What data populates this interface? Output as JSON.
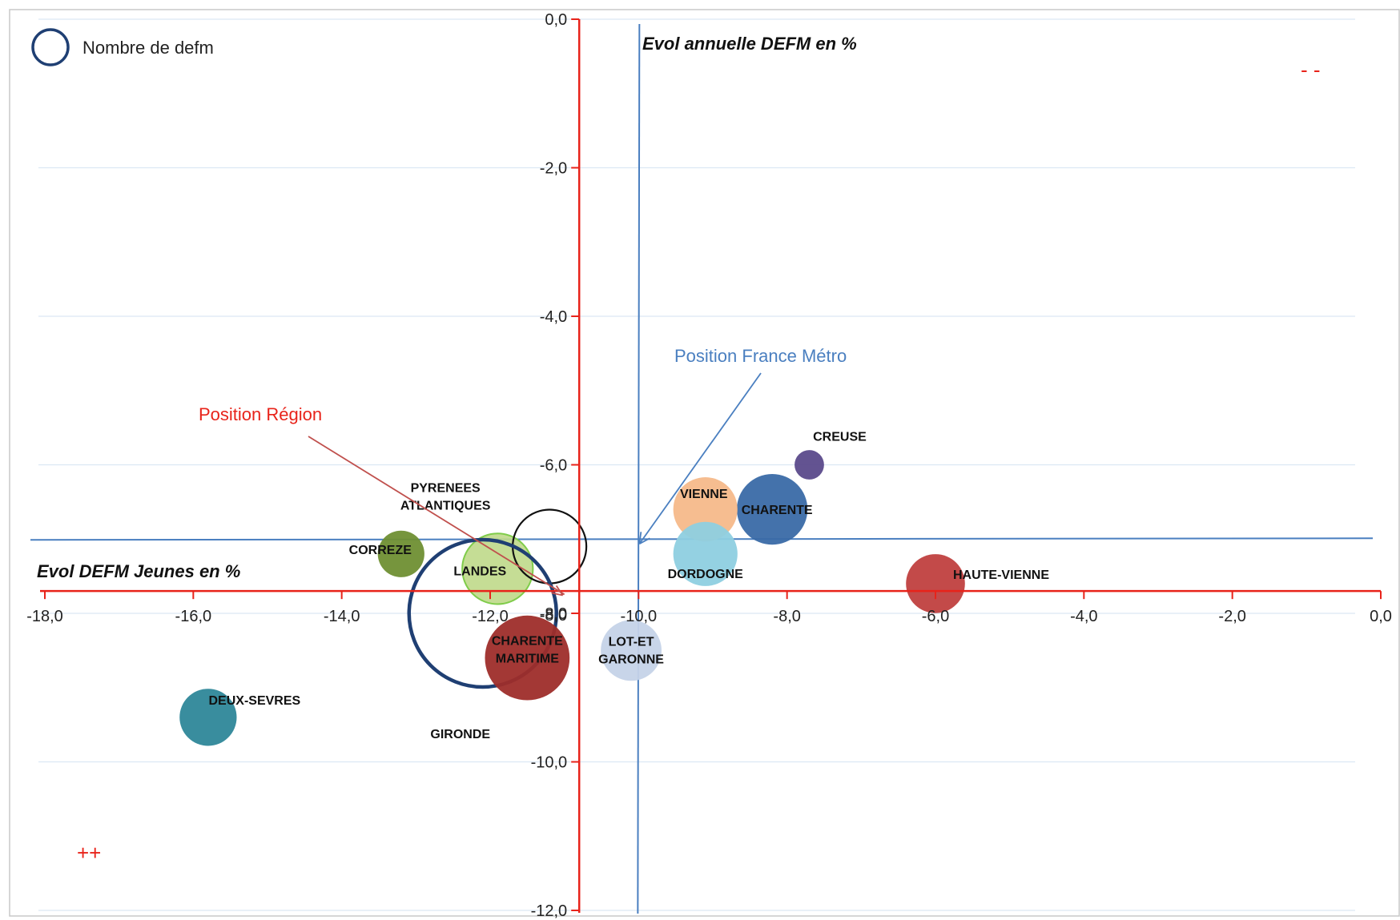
{
  "chart_data": {
    "type": "bubble",
    "xlabel": "Evol DEFM Jeunes en %",
    "ylabel": "Evol annuelle DEFM en %",
    "xlim": [
      -18.0,
      0.0
    ],
    "ylim": [
      -12.0,
      0.0
    ],
    "x_ticks": [
      "-18,0",
      "-16,0",
      "-14,0",
      "-12,0",
      "-10,0",
      "-8,0",
      "-6,0",
      "-4,0",
      "-2,0",
      "0,0"
    ],
    "y_ticks": [
      "0,0",
      "-2,0",
      "-4,0",
      "-6,0",
      "-8,0",
      "-10,0",
      "-12,0"
    ],
    "legend": {
      "label": "Nombre de defm",
      "placement": "top-left"
    },
    "axes_cross": {
      "y_axis_at_x": -10.8,
      "x_axis_at_y": -7.7
    },
    "grid": "horizontal",
    "points": [
      {
        "label": "CREUSE",
        "x": -7.7,
        "y": -6.0,
        "size": 4,
        "color": "#5b4a8b"
      },
      {
        "label": "CHARENTE",
        "x": -8.2,
        "y": -6.6,
        "size": 23,
        "color": "#3a6aa6"
      },
      {
        "label": "VIENNE",
        "x": -9.1,
        "y": -6.6,
        "size": 19,
        "color": "#f5b98a"
      },
      {
        "label": "DORDOGNE",
        "x": -9.1,
        "y": -7.2,
        "size": 19,
        "color": "#8ecfe0"
      },
      {
        "label": "HAUTE-VIENNE",
        "x": -6.0,
        "y": -7.6,
        "size": 16,
        "color": "#c0403f"
      },
      {
        "label": "CORREZE",
        "x": -13.2,
        "y": -7.2,
        "size": 10,
        "color": "#6f8f33"
      },
      {
        "label": "LANDES",
        "x": -11.9,
        "y": -7.4,
        "size": 23,
        "color": "#bfd98a"
      },
      {
        "label": "PYRENEES ATLANTIQUES",
        "x": -11.2,
        "y": -7.1,
        "size": 25,
        "color": "#111111"
      },
      {
        "label": "GIRONDE",
        "x": -12.1,
        "y": -8.0,
        "size": 100,
        "color": "#1f3f73"
      },
      {
        "label": "CHARENTE MARITIME",
        "x": -11.5,
        "y": -8.6,
        "size": 33,
        "color": "#9e2d2a"
      },
      {
        "label": "LOT-ET GARONNE",
        "x": -10.1,
        "y": -8.5,
        "size": 17,
        "color": "#c5d3e8"
      },
      {
        "label": "DEUX-SEVRES",
        "x": -15.8,
        "y": -9.4,
        "size": 15,
        "color": "#2e8799"
      }
    ],
    "reference_lines": [
      {
        "label": "Position Région",
        "orientation": "horizontal",
        "y": -7.0,
        "color": "#4a7fc0"
      },
      {
        "label": "Position France Métro",
        "orientation": "vertical",
        "x": -10.0,
        "color": "#4a7fc0"
      }
    ],
    "annotations": [
      {
        "text": "Position Région",
        "color": "#e8231a",
        "points_to": {
          "x": -11.0,
          "y": -7.8
        }
      },
      {
        "text": "Position France Métro",
        "color": "#4a7fc0",
        "points_to": {
          "x": -10.0,
          "y": -7.0
        }
      },
      {
        "text": "- -",
        "color": "#e8231a",
        "corner": "top-right"
      },
      {
        "text": "++",
        "color": "#e8231a",
        "corner": "bottom-left"
      }
    ],
    "overlapping_tick": "-8,0",
    "colors": {
      "axis_red": "#e8231a",
      "ref_blue": "#4a7fc0",
      "grid": "#dce8f4"
    }
  }
}
